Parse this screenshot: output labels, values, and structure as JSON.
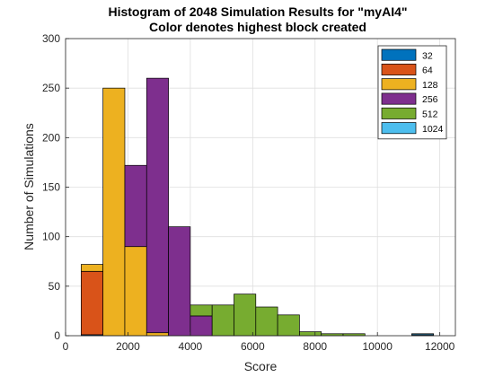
{
  "chart_data": {
    "type": "bar",
    "title": "Histogram of 2048 Simulation Results for \"myAI4\"",
    "subtitle": "Color denotes highest block created",
    "xlabel": "Score",
    "ylabel": "Number of Simulations",
    "xlim": [
      0,
      12500
    ],
    "ylim": [
      0,
      300
    ],
    "xticks": [
      0,
      2000,
      4000,
      6000,
      8000,
      10000,
      12000
    ],
    "yticks": [
      0,
      50,
      100,
      150,
      200,
      250,
      300
    ],
    "grid": true,
    "legend_position": "top-right",
    "bin_width": 700,
    "series": [
      {
        "name": "32",
        "color": "#0072BD",
        "bins": [
          {
            "start": 500,
            "count": 1
          },
          {
            "start": 11100,
            "count": 1
          }
        ]
      },
      {
        "name": "64",
        "color": "#D95319",
        "bins": [
          {
            "start": 500,
            "count": 64
          }
        ]
      },
      {
        "name": "128",
        "color": "#EDB120",
        "bins": [
          {
            "start": 500,
            "count": 7
          },
          {
            "start": 1200,
            "count": 250
          },
          {
            "start": 1900,
            "count": 90
          },
          {
            "start": 2600,
            "count": 3
          }
        ]
      },
      {
        "name": "256",
        "color": "#7E2F8E",
        "bins": [
          {
            "start": 1900,
            "count": 82
          },
          {
            "start": 2600,
            "count": 257
          },
          {
            "start": 3300,
            "count": 110
          },
          {
            "start": 4000,
            "count": 20
          }
        ]
      },
      {
        "name": "512",
        "color": "#77AC30",
        "bins": [
          {
            "start": 4000,
            "count": 11
          },
          {
            "start": 4700,
            "count": 31
          },
          {
            "start": 5400,
            "count": 42
          },
          {
            "start": 6100,
            "count": 29
          },
          {
            "start": 6800,
            "count": 21
          },
          {
            "start": 7500,
            "count": 4
          },
          {
            "start": 8200,
            "count": 2
          },
          {
            "start": 8900,
            "count": 2
          }
        ]
      },
      {
        "name": "1024",
        "color": "#4DBEEE",
        "bins": [
          {
            "start": 11100,
            "count": 1
          }
        ]
      }
    ]
  }
}
